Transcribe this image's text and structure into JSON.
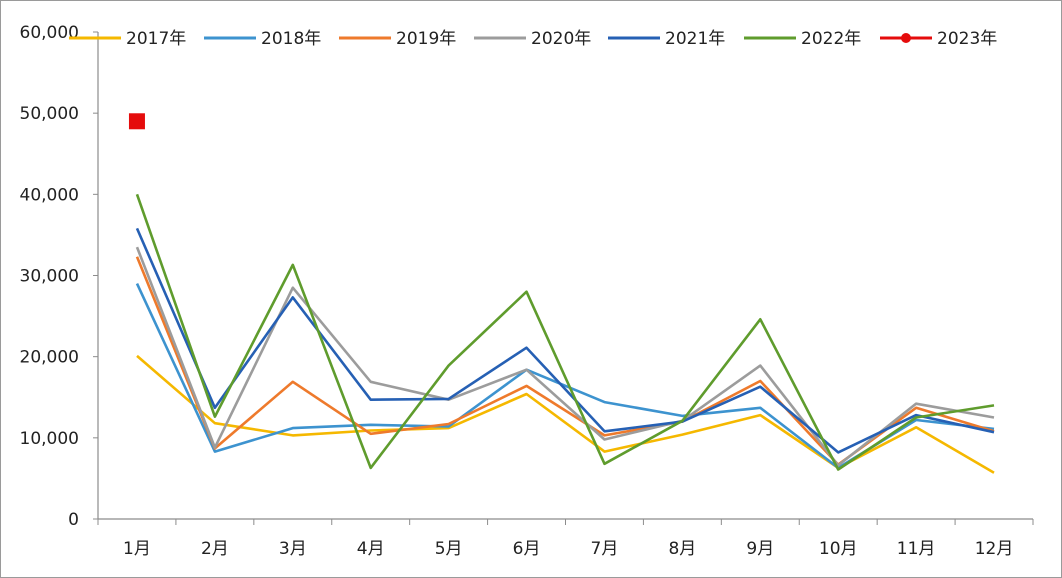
{
  "chart_data": {
    "type": "line",
    "title": "",
    "xlabel": "",
    "ylabel": "",
    "categories": [
      "1月",
      "2月",
      "3月",
      "4月",
      "5月",
      "6月",
      "7月",
      "8月",
      "9月",
      "10月",
      "11月",
      "12月"
    ],
    "ylim": [
      0,
      60000
    ],
    "yticks": [
      0,
      10000,
      20000,
      30000,
      40000,
      50000,
      60000
    ],
    "ytick_labels": [
      "0",
      "10,000",
      "20,000",
      "30,000",
      "40,000",
      "50,000",
      "60,000"
    ],
    "grid": false,
    "legend_position": "top",
    "series": [
      {
        "name": "2017年",
        "color": "#f5b800",
        "values": [
          20100,
          11800,
          10300,
          10900,
          11200,
          15400,
          8300,
          10400,
          12800,
          6300,
          11300,
          5700
        ]
      },
      {
        "name": "2018年",
        "color": "#3d93cf",
        "values": [
          29000,
          8300,
          11200,
          11600,
          11400,
          18400,
          14400,
          12700,
          13700,
          6300,
          12200,
          11100
        ]
      },
      {
        "name": "2019年",
        "color": "#ee7a2c",
        "values": [
          32300,
          8700,
          16900,
          10500,
          11700,
          16400,
          10300,
          12000,
          17000,
          6700,
          13700,
          10800
        ]
      },
      {
        "name": "2020年",
        "color": "#9c9c9c",
        "values": [
          33500,
          8800,
          28500,
          16900,
          14700,
          18400,
          9800,
          12100,
          18900,
          6600,
          14200,
          12500
        ]
      },
      {
        "name": "2021年",
        "color": "#2660b4",
        "values": [
          35800,
          13700,
          27300,
          14700,
          14800,
          21100,
          10800,
          12000,
          16300,
          8200,
          12800,
          10700
        ]
      },
      {
        "name": "2022年",
        "color": "#5f9c2d",
        "values": [
          40000,
          12600,
          31300,
          6300,
          18900,
          28000,
          6800,
          12100,
          24600,
          6100,
          12500,
          14000
        ]
      },
      {
        "name": "2023年",
        "color": "#e50c0c",
        "values": [
          49000,
          null,
          null,
          null,
          null,
          null,
          null,
          null,
          null,
          null,
          null,
          null
        ],
        "marker": "square"
      }
    ]
  }
}
